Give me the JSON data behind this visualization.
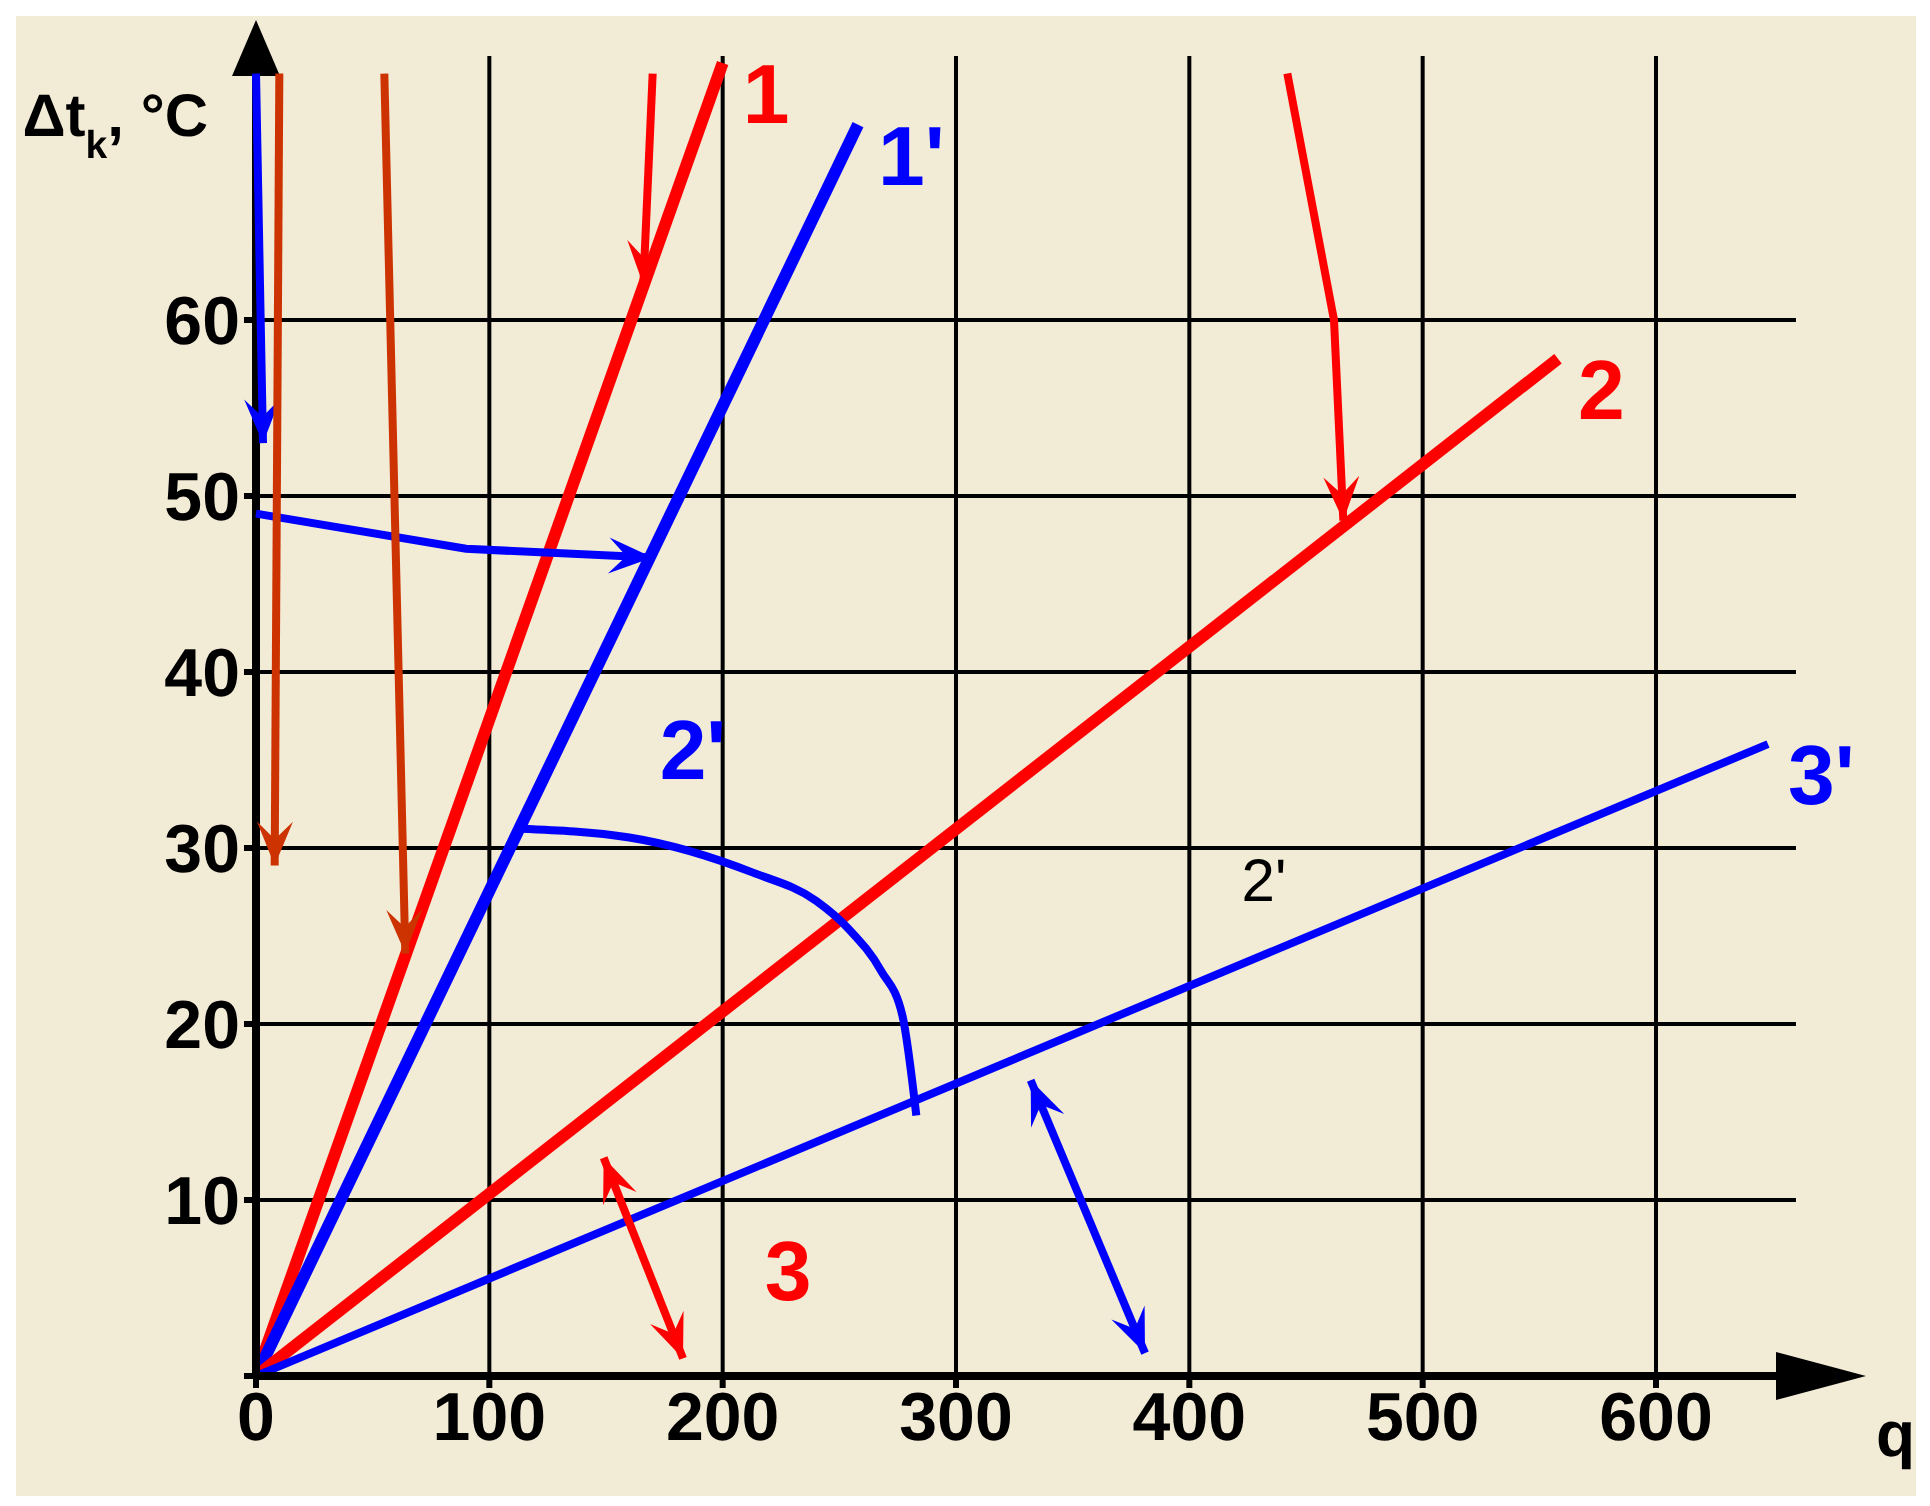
{
  "chart_data": {
    "type": "line",
    "ylabel": "Δt$_{k}$, °C",
    "xlabel": "q",
    "xlim": [
      0,
      660
    ],
    "ylim": [
      0,
      75
    ],
    "xticks": [
      0,
      100,
      200,
      300,
      400,
      500,
      600
    ],
    "yticks": [
      {
        "value": 0,
        "label": null
      },
      10,
      20,
      30,
      40,
      50,
      60
    ],
    "grid": true,
    "marker": "none",
    "line_style": "solid",
    "series": [
      {
        "name": "1",
        "color": "#ff0000",
        "x": [
          0,
          200
        ],
        "values": [
          0,
          74.6
        ]
      },
      {
        "name": "1'",
        "color": "#0000ff",
        "x": [
          0,
          258
        ],
        "values": [
          0,
          71.1
        ]
      },
      {
        "name": "2",
        "color": "#ff0000",
        "x": [
          0,
          558
        ],
        "values": [
          0,
          57.8
        ]
      },
      {
        "name": "2'",
        "color": "#0000ff",
        "x": [
          113,
          160,
          213,
          240,
          254,
          268,
          277,
          283
        ],
        "values": [
          31.1,
          30.6,
          28.6,
          27.0,
          25.4,
          23.0,
          20.5,
          14.8
        ]
      },
      {
        "name": "3'",
        "color": "#0000ff",
        "x": [
          0,
          648
        ],
        "values": [
          0,
          35.9
        ]
      }
    ],
    "annotations": [
      "3",
      "2'"
    ]
  }
}
